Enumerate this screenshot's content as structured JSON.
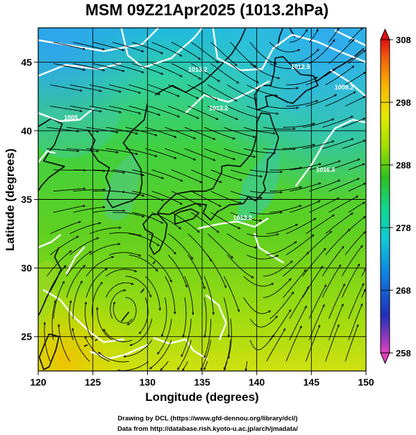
{
  "title": "MSM 09Z21Apr2025 (1013.2hPa)",
  "map": {
    "projection": "equirectangular",
    "lon_range": [
      120,
      150
    ],
    "lat_range": [
      22.5,
      47.5
    ],
    "grid": true,
    "xlabel": "Longitude (degrees)",
    "ylabel": "Latitude  (degrees)",
    "xticks": [
      "120",
      "125",
      "130",
      "135",
      "140",
      "145",
      "150"
    ],
    "yticks": [
      "25",
      "30",
      "35",
      "40",
      "45"
    ],
    "xtick_values": [
      120,
      125,
      130,
      135,
      140,
      145,
      150
    ],
    "ytick_values": [
      25,
      30,
      35,
      40,
      45
    ]
  },
  "colorbar": {
    "range": [
      258,
      308
    ],
    "ticks": [
      "258",
      "268",
      "278",
      "288",
      "298",
      "308"
    ],
    "tick_values": [
      258,
      268,
      278,
      288,
      298,
      308
    ],
    "colors": [
      "#e040c0",
      "#1020c0",
      "#1090e0",
      "#10d0d0",
      "#10d080",
      "#30c020",
      "#a0e000",
      "#e8e800",
      "#f8b000",
      "#f06010",
      "#e01010"
    ]
  },
  "features": {
    "contour_color": "#ffffff",
    "coastline_color": "#000000",
    "streamline_color": "#000000"
  },
  "contour_labels": [
    {
      "text": "1013.2",
      "lon": 134.6,
      "lat": 44.3
    },
    {
      "text": "1012.5",
      "lon": 144.0,
      "lat": 44.5
    },
    {
      "text": "1009.2",
      "lon": 148.0,
      "lat": 43.0
    },
    {
      "text": "1013.2",
      "lon": 136.5,
      "lat": 41.5
    },
    {
      "text": "1005",
      "lon": 123.0,
      "lat": 40.8
    },
    {
      "text": "1016.6",
      "lon": 146.3,
      "lat": 37.0
    },
    {
      "text": "1013.2",
      "lon": 138.7,
      "lat": 33.5
    }
  ],
  "credits": [
    "Drawing by DCL (https://www.gfd-dennou.org/library/dcl/)",
    "Data from http://database.rish.kyoto-u.ac.jp/arch/jmadata/"
  ]
}
